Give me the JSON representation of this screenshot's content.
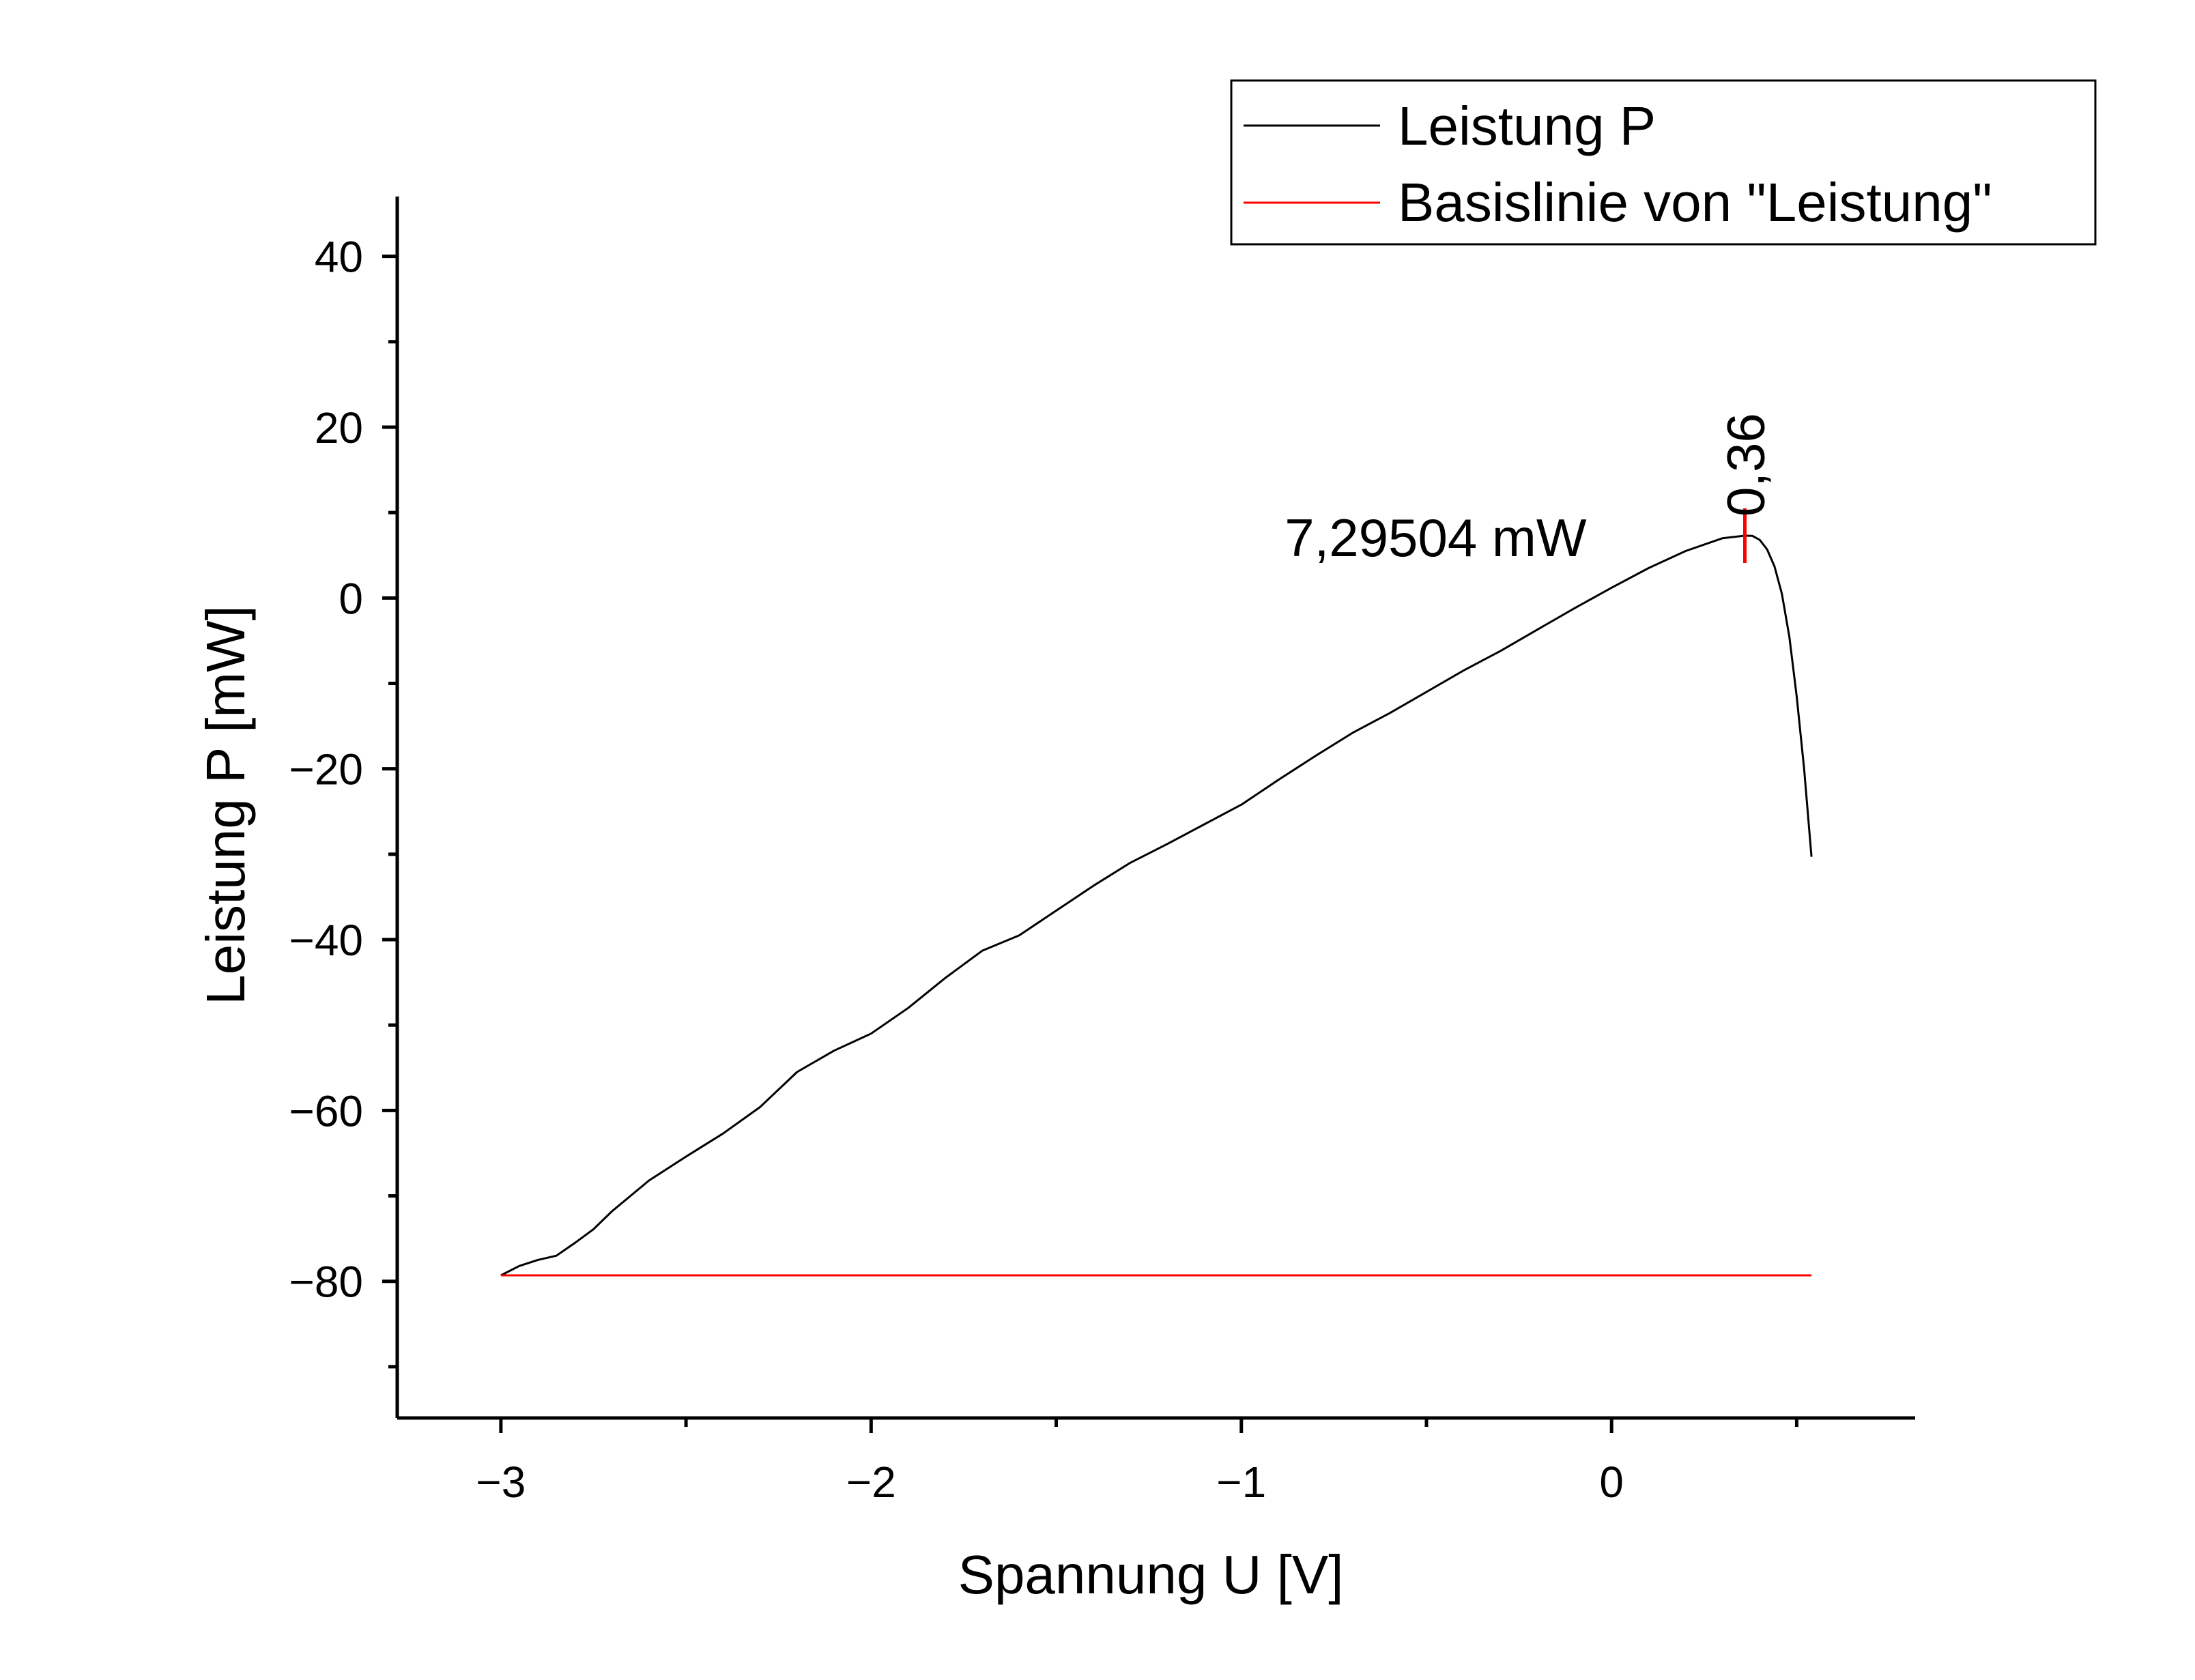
{
  "chart_data": {
    "type": "line",
    "title": "",
    "xlabel": "Spannung U [V]",
    "ylabel": "Leistung P [mW]",
    "xlim": [
      -3.28,
      0.82
    ],
    "ylim": [
      -96,
      47
    ],
    "x_ticks": [
      -3,
      -2,
      -1,
      0
    ],
    "x_tick_labels": [
      "−3",
      "−2",
      "−1",
      "0"
    ],
    "y_ticks": [
      40,
      20,
      0,
      -20,
      -40,
      -60,
      -80
    ],
    "y_tick_labels": [
      "40",
      "20",
      "0",
      "−20",
      "−40",
      "−60",
      "−80"
    ],
    "grid": false,
    "legend_position": "top-right",
    "series": [
      {
        "name": "Leistung P",
        "color": "#000000",
        "x": [
          -3.0,
          -2.95,
          -2.9,
          -2.85,
          -2.8,
          -2.75,
          -2.7,
          -2.6,
          -2.5,
          -2.4,
          -2.3,
          -2.2,
          -2.1,
          -2.0,
          -1.9,
          -1.8,
          -1.7,
          -1.6,
          -1.5,
          -1.4,
          -1.3,
          -1.2,
          -1.1,
          -1.0,
          -0.9,
          -0.8,
          -0.7,
          -0.6,
          -0.5,
          -0.4,
          -0.3,
          -0.2,
          -0.1,
          0.0,
          0.1,
          0.2,
          0.3,
          0.36,
          0.38,
          0.4,
          0.42,
          0.44,
          0.46,
          0.48,
          0.5,
          0.52,
          0.54
        ],
        "y": [
          -79.3,
          -78.2,
          -77.5,
          -77.0,
          -75.5,
          -73.9,
          -71.8,
          -68.2,
          -65.4,
          -62.7,
          -59.6,
          -55.5,
          -53.0,
          -51.0,
          -48.0,
          -44.5,
          -41.3,
          -39.5,
          -36.6,
          -33.7,
          -31.0,
          -28.8,
          -26.5,
          -24.2,
          -21.3,
          -18.5,
          -15.8,
          -13.5,
          -11.0,
          -8.5,
          -6.2,
          -3.7,
          -1.2,
          1.2,
          3.5,
          5.5,
          7.0,
          7.295,
          7.28,
          6.8,
          5.7,
          3.7,
          0.5,
          -4.5,
          -11.5,
          -20.0,
          -30.3
        ]
      },
      {
        "name": "Basislinie von \"Leistung\"",
        "color": "#ff0000",
        "x": [
          -3.0,
          0.54
        ],
        "y": [
          -79.3,
          -79.3
        ]
      }
    ],
    "annotations": [
      {
        "text": "7,29504 mW",
        "x": 0.36,
        "y": 7.29504
      },
      {
        "text": "0,36",
        "x": 0.36,
        "y": 7.29504,
        "rotation": -90
      }
    ],
    "marker_color": "#ff0000"
  }
}
